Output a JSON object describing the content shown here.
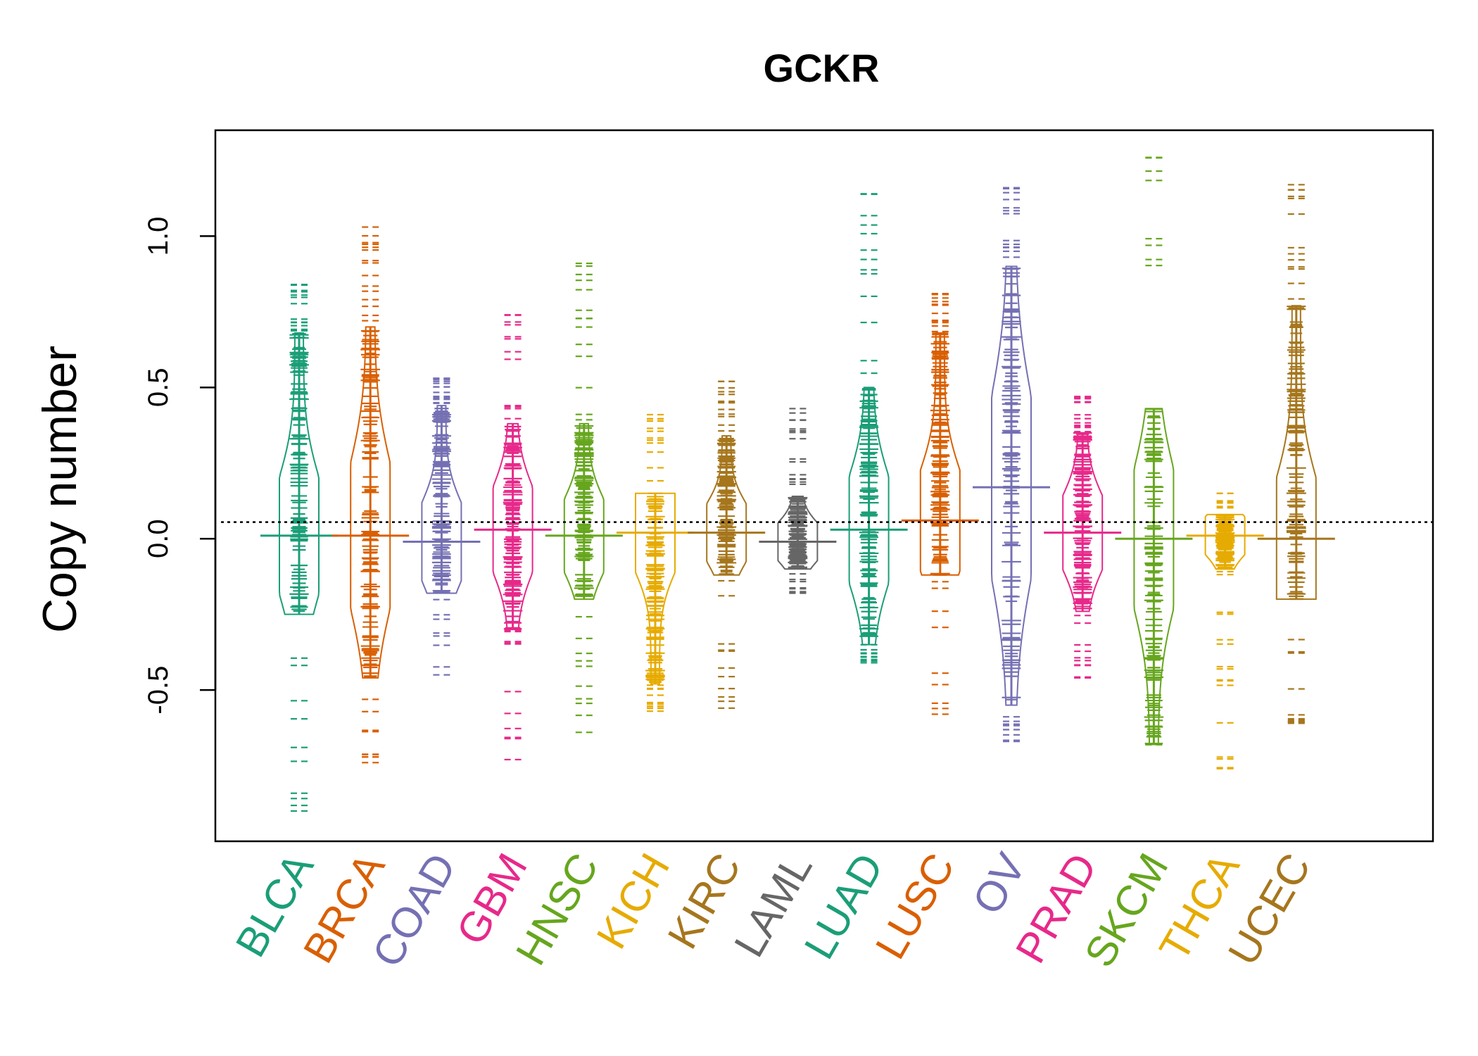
{
  "chart_data": {
    "type": "beanplot",
    "title": "GCKR",
    "ylabel": "Copy number",
    "xlabel": "",
    "ylim": [
      -1.0,
      1.35
    ],
    "yticks": [
      -0.5,
      0.0,
      0.5,
      1.0
    ],
    "ytick_labels": [
      "-0.5",
      "0.0",
      "0.5",
      "1.0"
    ],
    "reference_line": 0.055,
    "grid": false,
    "legend": "none",
    "categories": [
      "BLCA",
      "BRCA",
      "COAD",
      "GBM",
      "HNSC",
      "KICH",
      "KIRC",
      "LAML",
      "LUAD",
      "LUSC",
      "OV",
      "PRAD",
      "SKCM",
      "THCA",
      "UCEC"
    ],
    "colors": [
      "#1B9E77",
      "#D95F02",
      "#7570B3",
      "#E7298A",
      "#66A61E",
      "#E6AB02",
      "#A6761D",
      "#666666",
      "#1B9E77",
      "#D95F02",
      "#7570B3",
      "#E7298A",
      "#66A61E",
      "#E6AB02",
      "#A6761D"
    ],
    "series": [
      {
        "category": "BLCA",
        "center": 0.01,
        "range": [
          -0.9,
          0.84
        ],
        "q": [
          -0.25,
          0.68
        ]
      },
      {
        "category": "BRCA",
        "center": 0.01,
        "range": [
          -0.74,
          1.03
        ],
        "q": [
          -0.46,
          0.7
        ]
      },
      {
        "category": "COAD",
        "center": -0.01,
        "range": [
          -0.45,
          0.53
        ],
        "q": [
          -0.18,
          0.44
        ]
      },
      {
        "category": "GBM",
        "center": 0.03,
        "range": [
          -0.73,
          0.74
        ],
        "q": [
          -0.3,
          0.38
        ]
      },
      {
        "category": "HNSC",
        "center": 0.01,
        "range": [
          -0.64,
          0.91
        ],
        "q": [
          -0.2,
          0.38
        ]
      },
      {
        "category": "KICH",
        "center": 0.02,
        "range": [
          -0.57,
          0.41
        ],
        "q": [
          -0.48,
          0.15
        ]
      },
      {
        "category": "KIRC",
        "center": 0.02,
        "range": [
          -0.56,
          0.52
        ],
        "q": [
          -0.12,
          0.34
        ]
      },
      {
        "category": "LAML",
        "center": -0.01,
        "range": [
          -0.18,
          0.43
        ],
        "q": [
          -0.1,
          0.14
        ]
      },
      {
        "category": "LUAD",
        "center": 0.03,
        "range": [
          -0.41,
          1.14
        ],
        "q": [
          -0.35,
          0.5
        ]
      },
      {
        "category": "LUSC",
        "center": 0.06,
        "range": [
          -0.58,
          0.81
        ],
        "q": [
          -0.12,
          0.68
        ]
      },
      {
        "category": "OV",
        "center": 0.17,
        "range": [
          -0.67,
          1.16
        ],
        "q": [
          -0.55,
          0.9
        ]
      },
      {
        "category": "PRAD",
        "center": 0.02,
        "range": [
          -0.46,
          0.47
        ],
        "q": [
          -0.24,
          0.35
        ]
      },
      {
        "category": "SKCM",
        "center": 0.0,
        "range": [
          -0.68,
          1.26
        ],
        "q": [
          -0.68,
          0.43
        ]
      },
      {
        "category": "THCA",
        "center": 0.01,
        "range": [
          -0.76,
          0.15
        ],
        "q": [
          -0.1,
          0.08
        ]
      },
      {
        "category": "UCEC",
        "center": 0.0,
        "range": [
          -0.61,
          1.17
        ],
        "q": [
          -0.2,
          0.77
        ]
      }
    ]
  }
}
